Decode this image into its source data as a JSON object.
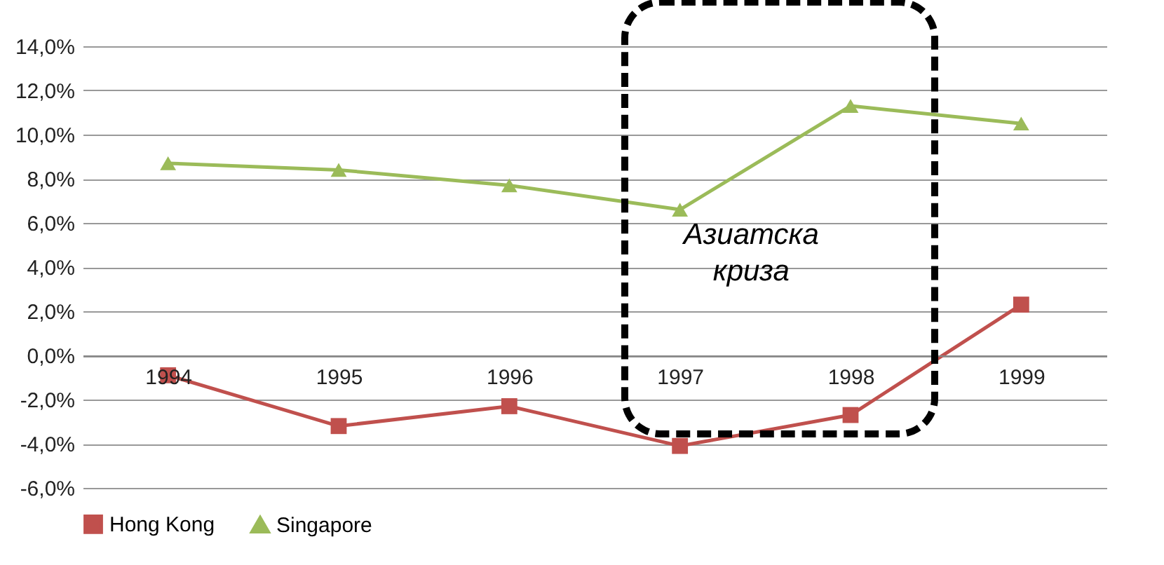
{
  "chart_data": {
    "type": "line",
    "categories": [
      "1994",
      "1995",
      "1996",
      "1997",
      "1998",
      "1999"
    ],
    "series": [
      {
        "name": "Hong Kong",
        "color": "#c0504d",
        "marker": "square",
        "values": [
          -0.9,
          -3.2,
          -2.3,
          -4.1,
          -2.7,
          2.3
        ]
      },
      {
        "name": "Singapore",
        "color": "#9bbb59",
        "marker": "triangle",
        "values": [
          8.7,
          8.4,
          7.7,
          6.6,
          11.3,
          10.5
        ]
      }
    ],
    "ylim": [
      -6,
      14
    ],
    "yticks": [
      {
        "value": -6,
        "label": "-6,0%"
      },
      {
        "value": -4,
        "label": "-4,0%"
      },
      {
        "value": -2,
        "label": "-2,0%"
      },
      {
        "value": 0,
        "label": "0,0%"
      },
      {
        "value": 2,
        "label": "2,0%"
      },
      {
        "value": 4,
        "label": "4,0%"
      },
      {
        "value": 6,
        "label": "6,0%"
      },
      {
        "value": 8,
        "label": "8,0%"
      },
      {
        "value": 10,
        "label": "10,0%"
      },
      {
        "value": 12,
        "label": "12,0%"
      },
      {
        "value": 14,
        "label": "14,0%"
      }
    ],
    "grid": "y",
    "legend": "bottom",
    "annotations": [
      "Азиатска криза"
    ]
  }
}
